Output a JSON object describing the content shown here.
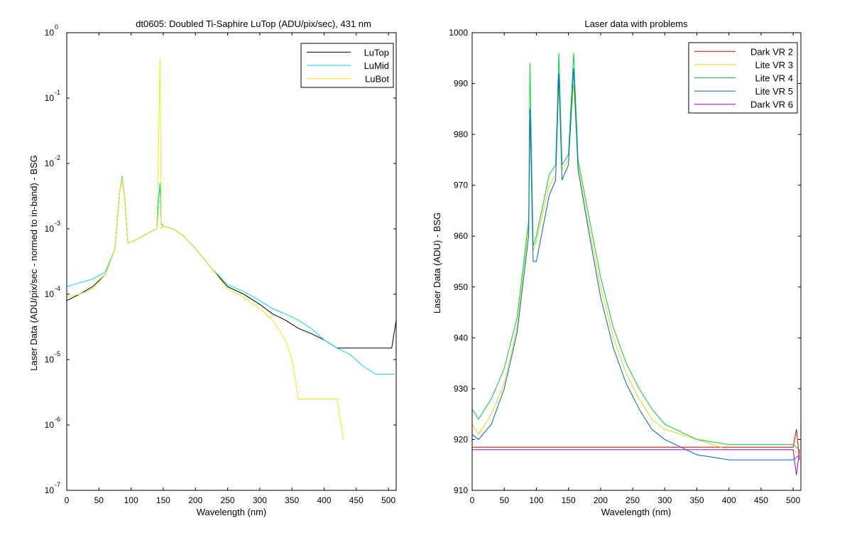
{
  "chart_data": [
    {
      "type": "line",
      "title": "dt0605: Doubled Ti-Saphire LuTop (ADU/pix/sec), 431 nm",
      "xlabel": "Wavelength (nm)",
      "ylabel": "Laser Data (ADU/pix/sec - normed to in-band) - BSG",
      "xlim": [
        0,
        512
      ],
      "ylim": [
        1e-07,
        1
      ],
      "yscale": "log",
      "xticks": [
        "0",
        "50",
        "100",
        "150",
        "200",
        "250",
        "300",
        "350",
        "400",
        "450",
        "500"
      ],
      "yticks": [
        {
          "base": "10",
          "exp": "0"
        },
        {
          "base": "10",
          "exp": "-1"
        },
        {
          "base": "10",
          "exp": "-2"
        },
        {
          "base": "10",
          "exp": "-3"
        },
        {
          "base": "10",
          "exp": "-4"
        },
        {
          "base": "10",
          "exp": "-5"
        },
        {
          "base": "10",
          "exp": "-6"
        },
        {
          "base": "10",
          "exp": "-7"
        }
      ],
      "grid": false,
      "legend_position": "top-right",
      "series": [
        {
          "name": "LuTop",
          "color": "#000000",
          "x": [
            0,
            20,
            40,
            60,
            75,
            82,
            86,
            90,
            95,
            110,
            130,
            140,
            143,
            145,
            147,
            150,
            165,
            180,
            200,
            225,
            250,
            275,
            300,
            320,
            340,
            360,
            380,
            400,
            420,
            440,
            450,
            470,
            490,
            505,
            512
          ],
          "y": [
            8e-05,
            0.0001,
            0.00013,
            0.0002,
            0.0005,
            0.0035,
            0.006,
            0.003,
            0.0006,
            0.0007,
            0.0009,
            0.001,
            0.003,
            0.005,
            0.0012,
            0.0011,
            0.001,
            0.0008,
            0.0005,
            0.00025,
            0.00013,
            0.0001,
            7e-05,
            5e-05,
            4e-05,
            3e-05,
            2.5e-05,
            2e-05,
            1.5e-05,
            1.5e-05,
            1.5e-05,
            1.5e-05,
            1.5e-05,
            1.5e-05,
            4e-05
          ]
        },
        {
          "name": "LuMid",
          "color": "#00e5e5",
          "x": [
            0,
            20,
            40,
            60,
            75,
            82,
            86,
            90,
            95,
            110,
            130,
            140,
            143,
            145,
            147,
            150,
            165,
            180,
            200,
            225,
            250,
            275,
            300,
            320,
            340,
            360,
            380,
            400,
            420,
            440,
            460,
            480,
            500,
            510
          ],
          "y": [
            0.00013,
            0.00015,
            0.00017,
            0.00022,
            0.0005,
            0.0035,
            0.0065,
            0.003,
            0.0006,
            0.0007,
            0.0009,
            0.001,
            0.003,
            0.005,
            0.0012,
            0.0011,
            0.001,
            0.0008,
            0.0005,
            0.00025,
            0.00014,
            0.00011,
            8e-05,
            6e-05,
            5e-05,
            4e-05,
            3e-05,
            2e-05,
            1.5e-05,
            1.2e-05,
            8e-06,
            6e-06,
            6e-06,
            6e-06
          ]
        },
        {
          "name": "LuBot",
          "color": "#f0f000",
          "x": [
            0,
            20,
            40,
            60,
            75,
            82,
            86,
            90,
            95,
            110,
            130,
            140,
            143,
            145,
            147,
            150,
            165,
            180,
            200,
            225,
            250,
            275,
            300,
            320,
            340,
            350,
            360,
            380,
            400,
            420,
            430
          ],
          "y": [
            9e-05,
            0.0001,
            0.00012,
            0.0002,
            0.0005,
            0.0035,
            0.006,
            0.003,
            0.0006,
            0.0007,
            0.0009,
            0.001,
            0.03,
            0.4,
            0.001,
            0.0011,
            0.001,
            0.0008,
            0.0005,
            0.00025,
            0.00012,
            9e-05,
            6e-05,
            4e-05,
            2e-05,
            1e-05,
            2.5e-06,
            2.5e-06,
            2.5e-06,
            2.5e-06,
            6e-07
          ]
        }
      ]
    },
    {
      "type": "line",
      "title": "Laser data with problems",
      "xlabel": "Wavelength (nm)",
      "ylabel": "Laser Data (ADU) - BSG",
      "xlim": [
        0,
        512
      ],
      "ylim": [
        910,
        1000
      ],
      "xticks": [
        "0",
        "50",
        "100",
        "150",
        "200",
        "250",
        "300",
        "350",
        "400",
        "450",
        "500"
      ],
      "yticks": [
        "910",
        "920",
        "930",
        "940",
        "950",
        "960",
        "970",
        "980",
        "990",
        "1000"
      ],
      "grid": false,
      "legend_position": "top-right",
      "series": [
        {
          "name": "Dark VR 2",
          "color": "#e00000",
          "x": [
            0,
            20,
            40,
            60,
            80,
            100,
            120,
            140,
            160,
            180,
            200,
            220,
            240,
            260,
            280,
            300,
            350,
            400,
            450,
            500,
            505,
            510
          ],
          "y": [
            918.5,
            918.5,
            918.5,
            918.5,
            918.5,
            918.5,
            918.5,
            918.5,
            918.5,
            918.5,
            918.5,
            918.5,
            918.5,
            918.5,
            918.5,
            918.5,
            918.5,
            918.5,
            918.5,
            918.5,
            922,
            916
          ]
        },
        {
          "name": "Lite VR 3",
          "color": "#e0e000",
          "x": [
            0,
            10,
            30,
            50,
            70,
            88,
            90,
            95,
            100,
            120,
            130,
            135,
            140,
            150,
            158,
            165,
            180,
            200,
            220,
            240,
            260,
            280,
            300,
            350,
            400,
            450,
            500,
            510
          ],
          "y": [
            923,
            921,
            925,
            931,
            942,
            962,
            985,
            957,
            959,
            970,
            972,
            990,
            973,
            975,
            990,
            974,
            963,
            950,
            940,
            933,
            928,
            924,
            922,
            920,
            918,
            918,
            918,
            917
          ]
        },
        {
          "name": "Lite VR 4",
          "color": "#00d040",
          "x": [
            0,
            10,
            30,
            50,
            70,
            88,
            90,
            95,
            100,
            120,
            130,
            135,
            140,
            150,
            158,
            165,
            180,
            200,
            220,
            240,
            260,
            280,
            300,
            350,
            400,
            450,
            500,
            510
          ],
          "y": [
            926,
            924,
            928,
            934,
            944,
            963,
            994,
            958,
            960,
            972,
            974,
            996,
            974,
            976,
            996,
            975,
            965,
            952,
            942,
            935,
            930,
            926,
            923,
            920,
            919,
            919,
            919,
            918
          ]
        },
        {
          "name": "Lite VR 5",
          "color": "#0060e0",
          "x": [
            0,
            10,
            30,
            50,
            70,
            88,
            90,
            95,
            100,
            120,
            130,
            135,
            140,
            150,
            158,
            165,
            180,
            200,
            220,
            240,
            260,
            280,
            300,
            350,
            400,
            450,
            500,
            510
          ],
          "y": [
            921,
            920,
            923,
            930,
            941,
            960,
            985,
            955,
            955,
            968,
            971,
            992,
            971,
            974,
            993,
            973,
            962,
            948,
            938,
            931,
            926,
            922,
            920,
            917,
            916,
            916,
            916,
            917
          ]
        },
        {
          "name": "Dark VR 6",
          "color": "#c000c0",
          "x": [
            0,
            20,
            40,
            60,
            80,
            100,
            120,
            140,
            160,
            180,
            200,
            220,
            240,
            260,
            280,
            300,
            350,
            400,
            450,
            500,
            505,
            510
          ],
          "y": [
            918,
            918,
            918,
            918,
            918,
            918,
            918,
            918,
            918,
            918,
            918,
            918,
            918,
            918,
            918,
            918,
            918,
            918,
            918,
            918,
            913,
            918
          ]
        }
      ]
    }
  ]
}
